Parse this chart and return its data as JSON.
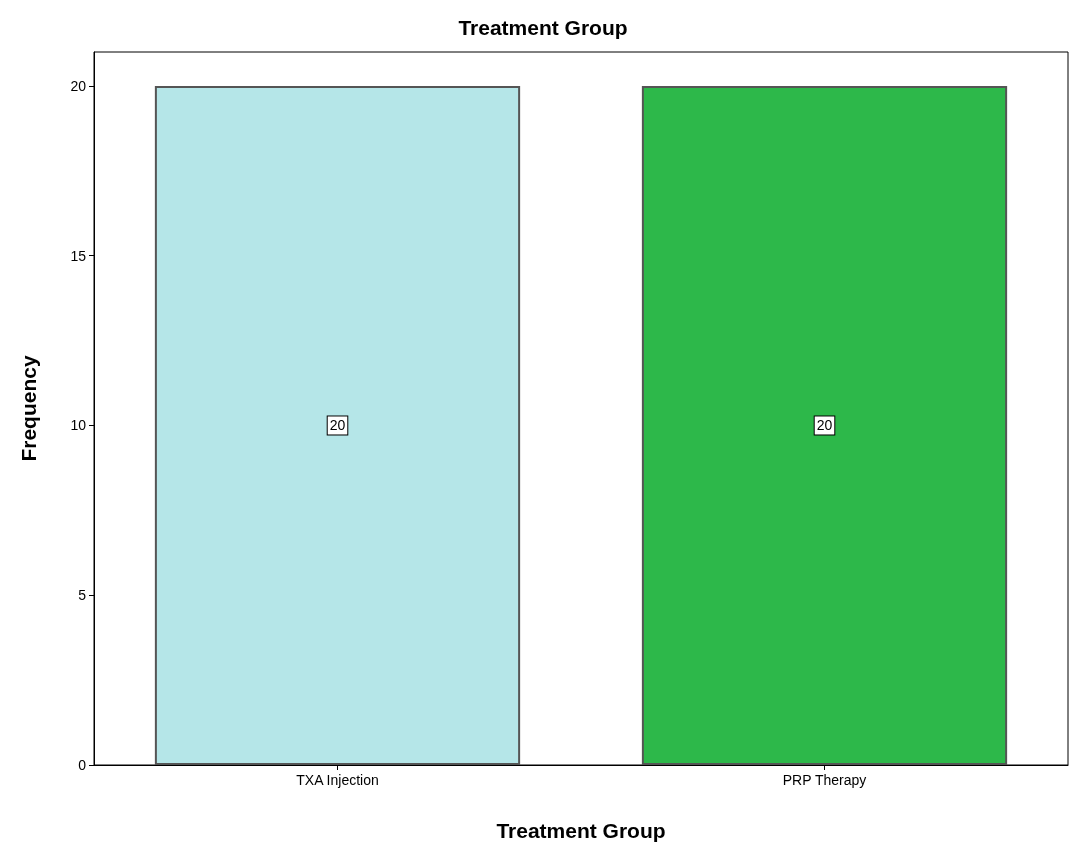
{
  "chart_data": {
    "type": "bar",
    "title": "Treatment Group",
    "xlabel": "Treatment Group",
    "ylabel": "Frequency",
    "categories": [
      "TXA Injection",
      "PRP Therapy"
    ],
    "values": [
      20,
      20
    ],
    "colors": [
      "#b5e6e8",
      "#2db84a"
    ],
    "ylim": [
      0,
      21
    ],
    "yticks": [
      0,
      5,
      10,
      15,
      20
    ],
    "grid": false,
    "data_labels": true
  }
}
